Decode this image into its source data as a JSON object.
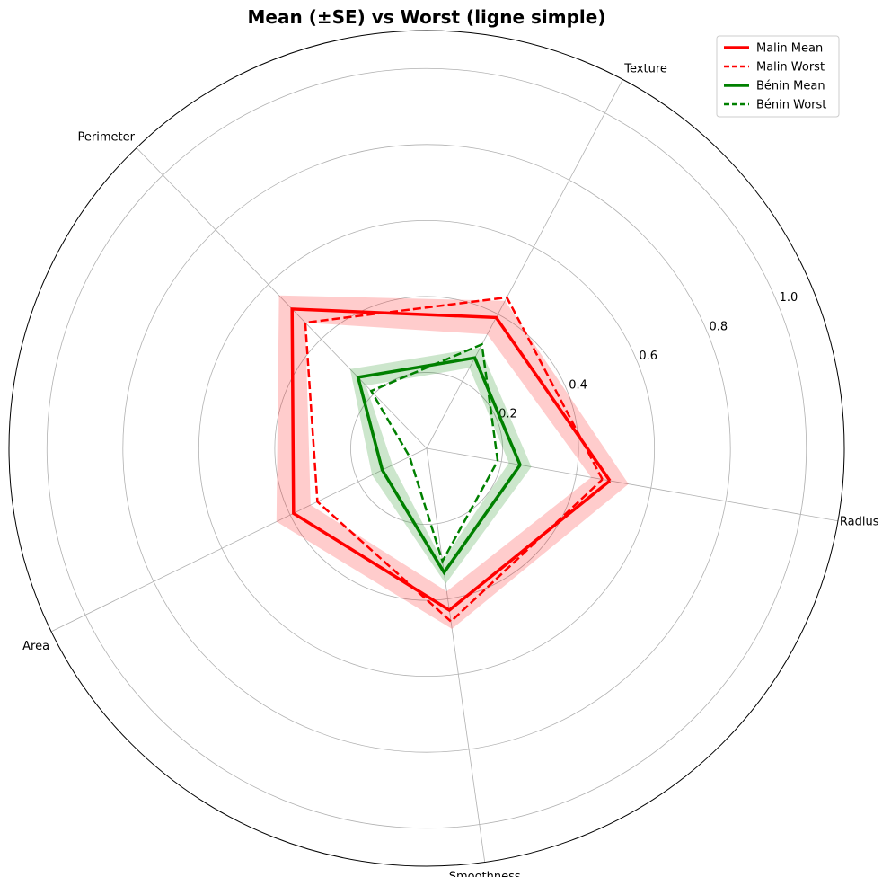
{
  "chart_data": {
    "type": "radar",
    "title": "Mean (±SE) vs Worst (ligne simple)",
    "axes": [
      "Radius",
      "Texture",
      "Perimeter",
      "Area",
      "Smoothness"
    ],
    "rmax": 1.1,
    "rticks": [
      0.2,
      0.4,
      0.6,
      0.8,
      1.0
    ],
    "rtick_labels": [
      "0.2",
      "0.4",
      "0.6",
      "0.8",
      "1.0"
    ],
    "grid": true,
    "legend_position": "top-right",
    "series": [
      {
        "name": "Malin Mean",
        "style": "solid",
        "color": "#ff0000",
        "values": [
          0.49,
          0.39,
          0.51,
          0.39,
          0.43
        ],
        "se_band": [
          0.05,
          0.05,
          0.05,
          0.05,
          0.05
        ]
      },
      {
        "name": "Malin Worst",
        "style": "dashed",
        "color": "#ff0000",
        "values": [
          0.47,
          0.45,
          0.46,
          0.32,
          0.46
        ],
        "se_band": null
      },
      {
        "name": "Bénin Mean",
        "style": "solid",
        "color": "#008000",
        "values": [
          0.25,
          0.27,
          0.26,
          0.13,
          0.33
        ],
        "se_band": [
          0.03,
          0.03,
          0.03,
          0.03,
          0.03
        ]
      },
      {
        "name": "Bénin Worst",
        "style": "dashed",
        "color": "#008000",
        "values": [
          0.19,
          0.31,
          0.21,
          0.05,
          0.3
        ],
        "se_band": null
      }
    ]
  }
}
